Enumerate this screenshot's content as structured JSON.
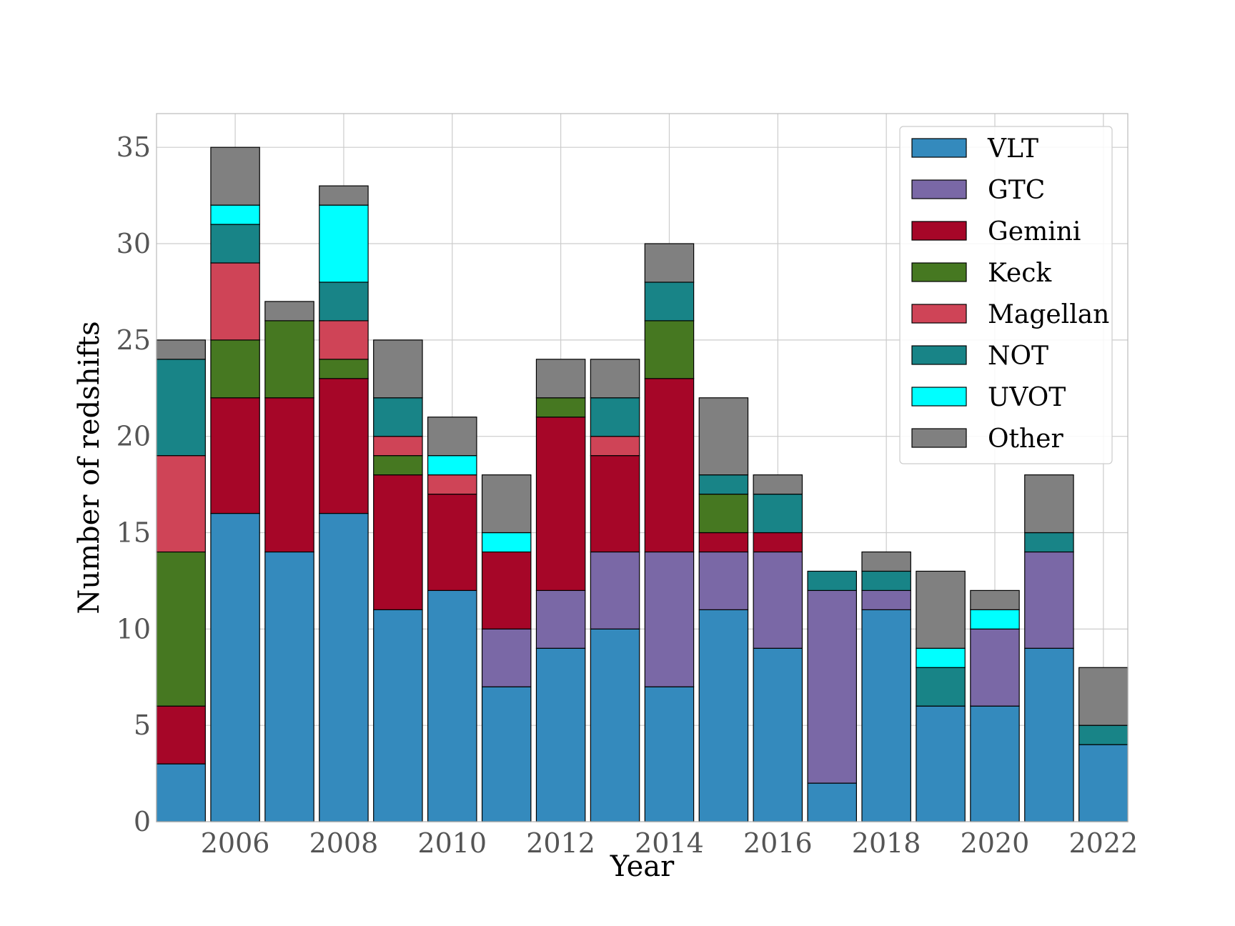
{
  "chart_data": {
    "type": "bar",
    "stacked": true,
    "xlabel": "Year",
    "ylabel": "Number of redshifts",
    "ylim": [
      0,
      36.75
    ],
    "xlim": [
      2004.55,
      2022.45
    ],
    "y_ticks": [
      0,
      5,
      10,
      15,
      20,
      25,
      30,
      35
    ],
    "x_ticks": [
      2006,
      2008,
      2010,
      2012,
      2014,
      2016,
      2018,
      2020,
      2022
    ],
    "grid": true,
    "legend_position": "top-right",
    "categories": [
      2005,
      2006,
      2007,
      2008,
      2009,
      2010,
      2011,
      2012,
      2013,
      2014,
      2015,
      2016,
      2017,
      2018,
      2019,
      2020,
      2021,
      2022
    ],
    "series": [
      {
        "name": "VLT",
        "color": "#348abd",
        "values": [
          3,
          16,
          14,
          16,
          11,
          12,
          7,
          9,
          10,
          7,
          11,
          9,
          2,
          11,
          6,
          6,
          9,
          4
        ]
      },
      {
        "name": "GTC",
        "color": "#7a68a6",
        "values": [
          0,
          0,
          0,
          0,
          0,
          0,
          3,
          3,
          4,
          7,
          3,
          5,
          10,
          1,
          0,
          4,
          5,
          0
        ]
      },
      {
        "name": "Gemini",
        "color": "#a60628",
        "values": [
          3,
          6,
          8,
          7,
          7,
          5,
          4,
          9,
          5,
          9,
          1,
          1,
          0,
          0,
          0,
          0,
          0,
          0
        ]
      },
      {
        "name": "Keck",
        "color": "#467821",
        "values": [
          8,
          3,
          4,
          1,
          1,
          0,
          0,
          1,
          0,
          3,
          2,
          0,
          0,
          0,
          0,
          0,
          0,
          0
        ]
      },
      {
        "name": "Magellan",
        "color": "#cf4457",
        "values": [
          5,
          4,
          0,
          2,
          1,
          1,
          0,
          0,
          1,
          0,
          0,
          0,
          0,
          0,
          0,
          0,
          0,
          0
        ]
      },
      {
        "name": "NOT",
        "color": "#188487",
        "values": [
          5,
          2,
          0,
          2,
          2,
          0,
          0,
          0,
          2,
          2,
          1,
          2,
          1,
          1,
          2,
          0,
          1,
          1
        ]
      },
      {
        "name": "UVOT",
        "color": "#00ffff",
        "values": [
          0,
          1,
          0,
          4,
          0,
          1,
          1,
          0,
          0,
          0,
          0,
          0,
          0,
          0,
          1,
          1,
          0,
          0
        ]
      },
      {
        "name": "Other",
        "color": "#808080",
        "values": [
          1,
          3,
          1,
          1,
          3,
          2,
          3,
          2,
          2,
          2,
          4,
          1,
          0,
          1,
          4,
          1,
          3,
          3
        ]
      }
    ]
  }
}
